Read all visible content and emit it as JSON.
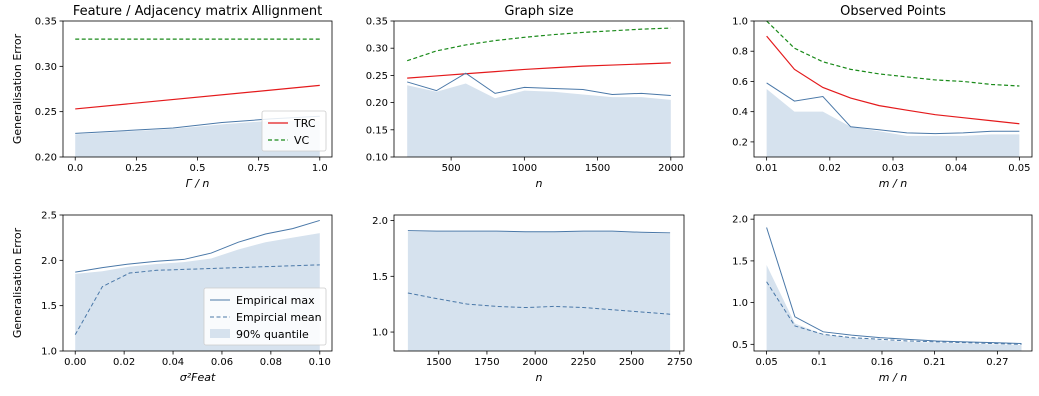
{
  "colors": {
    "trc": "#e41a1c",
    "vc": "#1a8a1a",
    "empirical": "#4a78a8",
    "quantile_fill": "#d6e2ee"
  },
  "chart_data": [
    {
      "type": "line",
      "title": "Feature / Adjacency matrix Allignment",
      "xlabel": "Γ / n",
      "ylabel": "Generalisation Error",
      "xlim": [
        -0.05,
        1.05
      ],
      "ylim": [
        0.2,
        0.35
      ],
      "xticks": [
        0.0,
        0.25,
        0.5,
        0.75,
        1.0
      ],
      "xtick_labels": [
        "0.0",
        "0.25",
        "0.5",
        "0.75",
        "1.0"
      ],
      "yticks": [
        0.2,
        0.25,
        0.3,
        0.35
      ],
      "ytick_labels": [
        "0.20",
        "0.25",
        "0.30",
        "0.35"
      ],
      "legend": {
        "position": "bottom-right",
        "entries": [
          "TRC",
          "VC"
        ]
      },
      "quantile": {
        "x": [
          0.0,
          0.2,
          0.4,
          0.6,
          0.8,
          1.0
        ],
        "y": [
          0.225,
          0.228,
          0.231,
          0.236,
          0.24,
          0.24
        ]
      },
      "series": [
        {
          "name": "TRC",
          "style": "trc",
          "x": [
            0.0,
            1.0
          ],
          "y": [
            0.253,
            0.279
          ]
        },
        {
          "name": "VC",
          "style": "vc",
          "x": [
            0.0,
            1.0
          ],
          "y": [
            0.33,
            0.33
          ]
        },
        {
          "style": "max",
          "x": [
            0.0,
            0.2,
            0.4,
            0.6,
            0.8,
            1.0
          ],
          "y": [
            0.226,
            0.229,
            0.232,
            0.238,
            0.242,
            0.245
          ]
        }
      ]
    },
    {
      "type": "line",
      "title": "Graph size",
      "xlabel": "n",
      "ylabel": "",
      "xlim": [
        110,
        2090
      ],
      "ylim": [
        0.1,
        0.35
      ],
      "xticks": [
        500,
        1000,
        1500,
        2000
      ],
      "xtick_labels": [
        "500",
        "1000",
        "1500",
        "2000"
      ],
      "yticks": [
        0.1,
        0.15,
        0.2,
        0.25,
        0.3,
        0.35
      ],
      "ytick_labels": [
        "0.10",
        "0.15",
        "0.20",
        "0.25",
        "0.30",
        "0.35"
      ],
      "quantile": {
        "x": [
          200,
          400,
          600,
          800,
          1000,
          1200,
          1400,
          1600,
          1800,
          2000
        ],
        "y": [
          0.232,
          0.22,
          0.235,
          0.208,
          0.222,
          0.22,
          0.215,
          0.21,
          0.21,
          0.205
        ]
      },
      "series": [
        {
          "name": "TRC",
          "style": "trc",
          "x": [
            200,
            400,
            600,
            800,
            1000,
            1200,
            1400,
            1600,
            1800,
            2000
          ],
          "y": [
            0.245,
            0.249,
            0.253,
            0.257,
            0.261,
            0.264,
            0.267,
            0.269,
            0.271,
            0.273
          ]
        },
        {
          "name": "VC",
          "style": "vc",
          "x": [
            200,
            400,
            600,
            800,
            1000,
            1200,
            1400,
            1600,
            1800,
            2000
          ],
          "y": [
            0.277,
            0.295,
            0.306,
            0.314,
            0.32,
            0.325,
            0.329,
            0.332,
            0.335,
            0.337
          ]
        },
        {
          "style": "max",
          "x": [
            200,
            400,
            600,
            800,
            1000,
            1200,
            1400,
            1600,
            1800,
            2000
          ],
          "y": [
            0.238,
            0.222,
            0.254,
            0.217,
            0.228,
            0.226,
            0.224,
            0.215,
            0.217,
            0.213
          ]
        }
      ]
    },
    {
      "type": "line",
      "title": "Observed Points",
      "xlabel": "m / n",
      "ylabel": "",
      "xlim": [
        0.008,
        0.052
      ],
      "ylim": [
        0.1,
        1.0
      ],
      "xticks": [
        0.01,
        0.02,
        0.03,
        0.04,
        0.05
      ],
      "xtick_labels": [
        "0.01",
        "0.02",
        "0.03",
        "0.04",
        "0.05"
      ],
      "yticks": [
        0.2,
        0.4,
        0.6,
        0.8,
        1.0
      ],
      "ytick_labels": [
        "0.2",
        "0.4",
        "0.6",
        "0.8",
        "1.0"
      ],
      "quantile": {
        "x": [
          0.01,
          0.0144,
          0.0189,
          0.0233,
          0.0278,
          0.0322,
          0.0367,
          0.0411,
          0.0456,
          0.05
        ],
        "y": [
          0.55,
          0.4,
          0.4,
          0.3,
          0.27,
          0.24,
          0.24,
          0.24,
          0.25,
          0.25
        ]
      },
      "series": [
        {
          "name": "TRC",
          "style": "trc",
          "x": [
            0.01,
            0.0144,
            0.0189,
            0.0233,
            0.0278,
            0.0322,
            0.0367,
            0.0411,
            0.0456,
            0.05
          ],
          "y": [
            0.9,
            0.68,
            0.56,
            0.49,
            0.44,
            0.41,
            0.38,
            0.36,
            0.34,
            0.32
          ]
        },
        {
          "name": "VC",
          "style": "vc",
          "x": [
            0.01,
            0.0144,
            0.0189,
            0.0233,
            0.0278,
            0.0322,
            0.0367,
            0.0411,
            0.0456,
            0.05
          ],
          "y": [
            1.0,
            0.82,
            0.73,
            0.68,
            0.65,
            0.63,
            0.61,
            0.6,
            0.58,
            0.57
          ]
        },
        {
          "style": "max",
          "x": [
            0.01,
            0.0144,
            0.0189,
            0.0233,
            0.0278,
            0.0322,
            0.0367,
            0.0411,
            0.0456,
            0.05
          ],
          "y": [
            0.59,
            0.47,
            0.5,
            0.3,
            0.28,
            0.26,
            0.255,
            0.26,
            0.27,
            0.27
          ]
        }
      ]
    },
    {
      "type": "line",
      "title": "",
      "xlabel": "σ²Feat",
      "ylabel": "Generalisation Error",
      "xlim": [
        -0.005,
        0.105
      ],
      "ylim": [
        1.0,
        2.5
      ],
      "xticks": [
        0.0,
        0.02,
        0.04,
        0.06,
        0.08,
        0.1
      ],
      "xtick_labels": [
        "0.00",
        "0.02",
        "0.04",
        "0.06",
        "0.08",
        "0.10"
      ],
      "yticks": [
        1.0,
        1.5,
        2.0,
        2.5
      ],
      "ytick_labels": [
        "1.0",
        "1.5",
        "2.0",
        "2.5"
      ],
      "legend": {
        "position": "bottom-right",
        "entries": [
          "Empirical max",
          "Empircial mean",
          "90% quantile"
        ]
      },
      "quantile": {
        "x": [
          0.0,
          0.0111,
          0.0222,
          0.0333,
          0.0444,
          0.0556,
          0.0667,
          0.0778,
          0.0889,
          0.1
        ],
        "y": [
          1.85,
          1.88,
          1.93,
          1.96,
          1.98,
          2.02,
          2.12,
          2.2,
          2.25,
          2.3
        ]
      },
      "series": [
        {
          "name": "Empirical max",
          "style": "max",
          "x": [
            0.0,
            0.0111,
            0.0222,
            0.0333,
            0.0444,
            0.0556,
            0.0667,
            0.0778,
            0.0889,
            0.1
          ],
          "y": [
            1.87,
            1.92,
            1.96,
            1.99,
            2.01,
            2.08,
            2.2,
            2.29,
            2.35,
            2.44
          ]
        },
        {
          "name": "Empircial mean",
          "style": "mean",
          "x": [
            0.0,
            0.0111,
            0.0222,
            0.0333,
            0.0444,
            0.0556,
            0.0667,
            0.0778,
            0.0889,
            0.1
          ],
          "y": [
            1.18,
            1.71,
            1.86,
            1.89,
            1.9,
            1.91,
            1.92,
            1.93,
            1.94,
            1.95
          ]
        }
      ]
    },
    {
      "type": "line",
      "title": "",
      "xlabel": "n",
      "ylabel": "",
      "xlim": [
        1268,
        2772
      ],
      "ylim": [
        0.83,
        2.05
      ],
      "xticks": [
        1500,
        1750,
        2000,
        2250,
        2500,
        2750
      ],
      "xtick_labels": [
        "1500",
        "1750",
        "2000",
        "2250",
        "2500",
        "2750"
      ],
      "yticks": [
        1.0,
        1.5,
        2.0
      ],
      "ytick_labels": [
        "1.0",
        "1.5",
        "2.0"
      ],
      "quantile": {
        "x": [
          1340,
          1490,
          1650,
          1800,
          1950,
          2100,
          2250,
          2400,
          2550,
          2700
        ],
        "y": [
          1.9,
          1.9,
          1.9,
          1.9,
          1.9,
          1.9,
          1.9,
          1.9,
          1.89,
          1.88
        ]
      },
      "series": [
        {
          "style": "max",
          "x": [
            1340,
            1490,
            1650,
            1800,
            1950,
            2100,
            2250,
            2400,
            2550,
            2700
          ],
          "y": [
            1.91,
            1.905,
            1.905,
            1.905,
            1.9,
            1.9,
            1.905,
            1.905,
            1.895,
            1.89
          ]
        },
        {
          "style": "mean",
          "x": [
            1340,
            1490,
            1650,
            1800,
            1950,
            2100,
            2250,
            2400,
            2550,
            2700
          ],
          "y": [
            1.35,
            1.3,
            1.25,
            1.23,
            1.22,
            1.23,
            1.22,
            1.2,
            1.18,
            1.16
          ]
        }
      ]
    },
    {
      "type": "line",
      "title": "",
      "xlabel": "m / n",
      "ylabel": "",
      "xlim": [
        0.038,
        0.303
      ],
      "ylim": [
        0.42,
        2.05
      ],
      "xticks": [
        0.05,
        0.1,
        0.16,
        0.21,
        0.27
      ],
      "xtick_labels": [
        "0.05",
        "0.1",
        "0.16",
        "0.21",
        "0.27"
      ],
      "yticks": [
        0.5,
        1.0,
        1.5,
        2.0
      ],
      "ytick_labels": [
        "0.5",
        "1.0",
        "1.5",
        "2.0"
      ],
      "quantile": {
        "x": [
          0.05,
          0.077,
          0.104,
          0.131,
          0.158,
          0.185,
          0.212,
          0.239,
          0.266,
          0.293
        ],
        "y": [
          1.45,
          0.75,
          0.62,
          0.58,
          0.55,
          0.53,
          0.52,
          0.51,
          0.5,
          0.49
        ]
      },
      "series": [
        {
          "style": "max",
          "x": [
            0.05,
            0.077,
            0.104,
            0.131,
            0.158,
            0.185,
            0.212,
            0.239,
            0.266,
            0.293
          ],
          "y": [
            1.9,
            0.83,
            0.65,
            0.61,
            0.58,
            0.56,
            0.54,
            0.53,
            0.52,
            0.51
          ]
        },
        {
          "style": "mean",
          "x": [
            0.05,
            0.077,
            0.104,
            0.131,
            0.158,
            0.185,
            0.212,
            0.239,
            0.266,
            0.293
          ],
          "y": [
            1.25,
            0.72,
            0.62,
            0.58,
            0.56,
            0.54,
            0.53,
            0.52,
            0.51,
            0.5
          ]
        }
      ]
    }
  ]
}
